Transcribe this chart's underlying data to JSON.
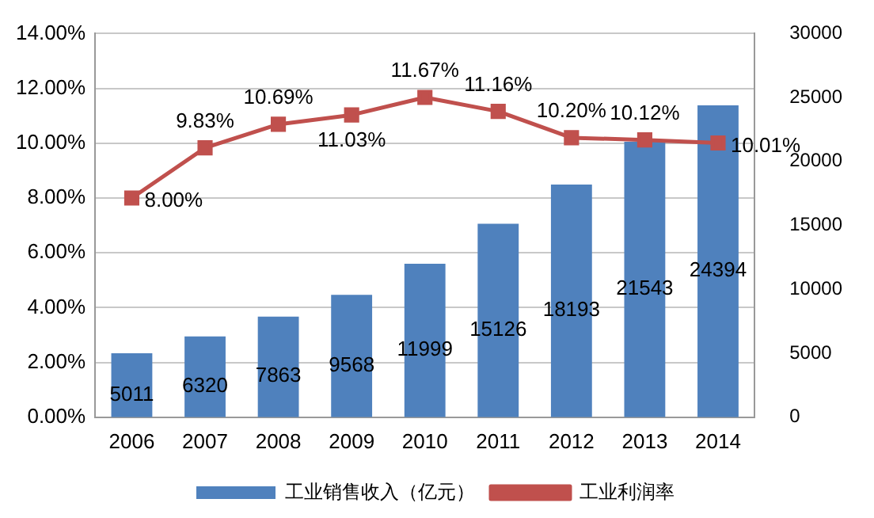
{
  "chart_data": {
    "type": "bar",
    "categories": [
      "2006",
      "2007",
      "2008",
      "2009",
      "2010",
      "2011",
      "2012",
      "2013",
      "2014"
    ],
    "series": [
      {
        "name": "工业销售收入（亿元）",
        "axis": "y2",
        "color": "#4f81bd",
        "values": [
          5011,
          6320,
          7863,
          9568,
          11999,
          15126,
          18193,
          21543,
          24394
        ],
        "value_labels": [
          "5011",
          "6320",
          "7863",
          "9568",
          "11999",
          "15126",
          "18193",
          "21543",
          "24394"
        ]
      },
      {
        "name": "工业利润率",
        "type": "line",
        "color": "#c0504d",
        "marker": "square",
        "values": [
          8.0,
          9.83,
          10.69,
          11.03,
          11.67,
          11.16,
          10.2,
          10.12,
          10.01
        ],
        "value_labels": [
          "8.00%",
          "9.83%",
          "10.69%",
          "11.03%",
          "11.67%",
          "11.16%",
          "10.20%",
          "10.12%",
          "10.01%"
        ]
      }
    ],
    "ylim": [
      0,
      14
    ],
    "yticks": [
      {
        "value": 0,
        "label": "0.00%"
      },
      {
        "value": 2,
        "label": "2.00%"
      },
      {
        "value": 4,
        "label": "4.00%"
      },
      {
        "value": 6,
        "label": "6.00%"
      },
      {
        "value": 8,
        "label": "8.00%"
      },
      {
        "value": 10,
        "label": "10.00%"
      },
      {
        "value": 12,
        "label": "12.00%"
      },
      {
        "value": 14,
        "label": "14.00%"
      }
    ],
    "y2lim": [
      0,
      30000
    ],
    "y2ticks": [
      0,
      5000,
      10000,
      15000,
      20000,
      25000,
      30000
    ],
    "grid": "y",
    "legend": "bottom"
  }
}
